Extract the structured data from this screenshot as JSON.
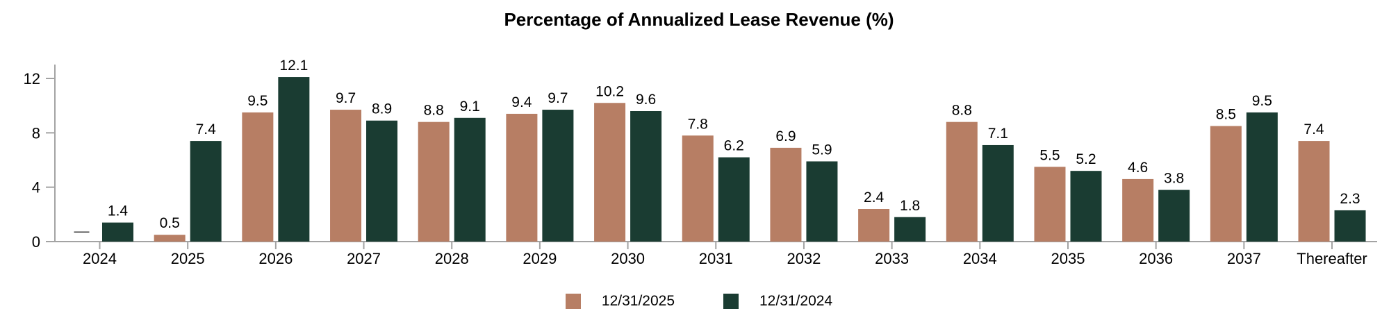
{
  "chart_data": {
    "type": "bar",
    "title": "Percentage of Annualized Lease Revenue (%)",
    "categories": [
      "2024",
      "2025",
      "2026",
      "2027",
      "2028",
      "2029",
      "2030",
      "2031",
      "2032",
      "2033",
      "2034",
      "2035",
      "2036",
      "2037",
      "Thereafter"
    ],
    "series": [
      {
        "name": "12/31/2025",
        "color": "#B77E64",
        "values": [
          null,
          0.5,
          9.5,
          9.7,
          8.8,
          9.4,
          10.2,
          7.8,
          6.9,
          2.4,
          8.8,
          5.5,
          4.6,
          8.5,
          7.4
        ]
      },
      {
        "name": "12/31/2024",
        "color": "#1A3C32",
        "values": [
          1.4,
          7.4,
          12.1,
          8.9,
          9.1,
          9.7,
          9.6,
          6.2,
          5.9,
          1.8,
          7.1,
          5.2,
          3.8,
          9.5,
          2.3
        ]
      }
    ],
    "null_display": "—",
    "y_axis": {
      "ticks": [
        0,
        4,
        8,
        12
      ],
      "max": 13
    },
    "axis_color": "#A3A3A3",
    "text_color": "#000000",
    "null_dash_color": "#3A3A3A",
    "legend_position": "bottom",
    "grid": false
  }
}
